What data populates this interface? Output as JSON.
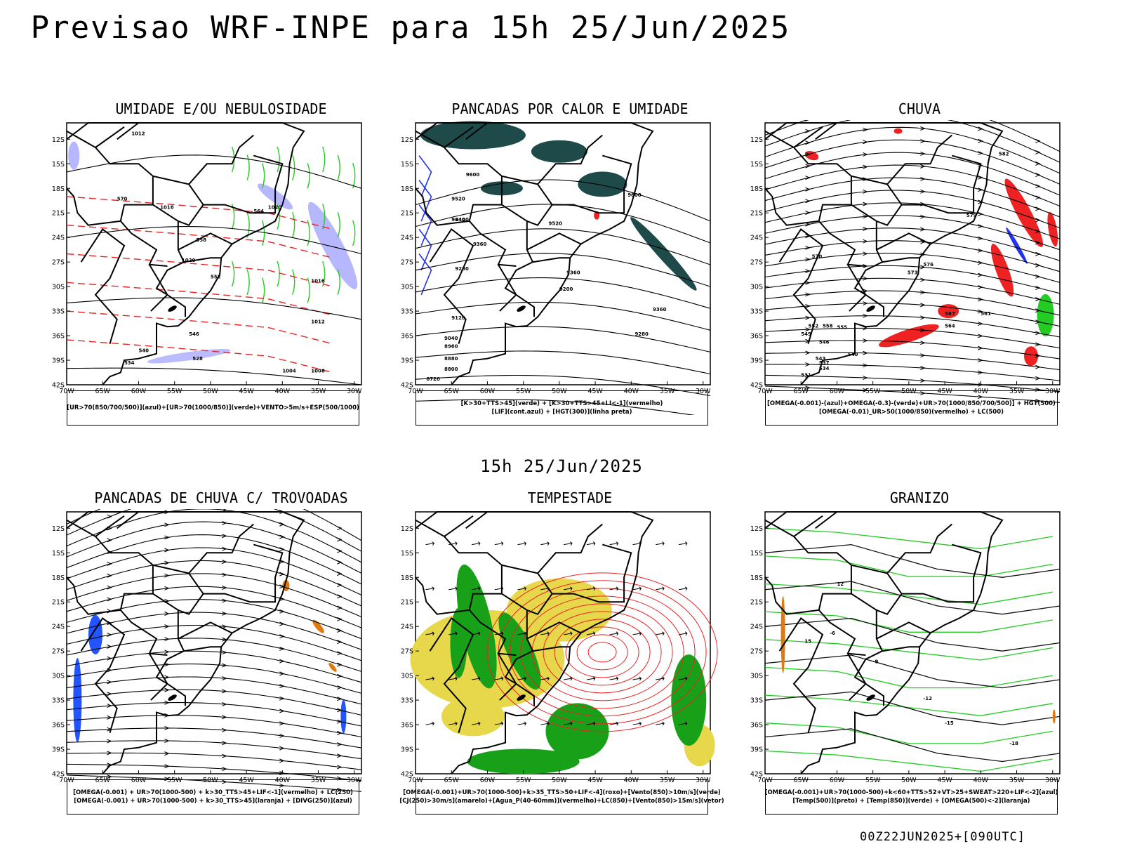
{
  "title": "Previsao WRF-INPE  para 15h 25/Jun/2025",
  "mid_time": "15h 25/Jun/2025",
  "run_stamp": "00Z22JUN2025+[090UTC]",
  "axes": {
    "lat_ticks": [
      "12S",
      "15S",
      "18S",
      "21S",
      "24S",
      "27S",
      "30S",
      "33S",
      "36S",
      "39S",
      "42S"
    ],
    "lon_ticks": [
      "70W",
      "65W",
      "60W",
      "55W",
      "50W",
      "45W",
      "40W",
      "35W",
      "30W"
    ]
  },
  "colors": {
    "blue": "#6666ff",
    "lightblue": "#aaaaff",
    "green": "#22cc22",
    "red": "#ee2222",
    "darkteal": "#1e4a4a",
    "yellow": "#e6d84a",
    "orange": "#e07a10",
    "black": "#000000"
  },
  "panels": [
    {
      "title": "UMIDADE E/OU NEBULOSIDADE",
      "legend": [
        "[UR>70(850/700/500)](azul)+[UR>70(1000/850)](verde)+VENTO>5m/s+ESP(500/1000)"
      ],
      "contour_labels": [
        "1012",
        "1016",
        "1020",
        "570",
        "564",
        "558",
        "552",
        "546",
        "540",
        "534",
        "528",
        "1008",
        "1004"
      ]
    },
    {
      "title": "PANCADAS POR CALOR E UMIDADE",
      "legend": [
        "[K>30+TTS>45](verde) + [K>30+TTS>45+LI<-1](vermelho)",
        "[LIF](cont.azul) + [HGT(300)](linha preta)"
      ],
      "contour_labels": [
        "9600",
        "9520",
        "9440",
        "9360",
        "9280",
        "9200",
        "9120",
        "9040",
        "8960",
        "8880",
        "8800",
        "8720"
      ]
    },
    {
      "title": "CHUVA",
      "legend": [
        "[OMEGA(-0.001)-(azul)+OMEGA(-0.3)-(verde)+UR>70(1000/850/700/500)] + HGT(500)",
        "[OMEGA(-0.01)_UR>50(1000/850)(vermelho) + LC(500)"
      ],
      "contour_labels": [
        "582",
        "579",
        "576",
        "573",
        "570",
        "567",
        "564",
        "561",
        "558",
        "555",
        "552",
        "549",
        "546",
        "543",
        "540",
        "537",
        "534",
        "531"
      ]
    },
    {
      "title": "PANCADAS DE CHUVA C/ TROVOADAS",
      "legend": [
        "[OMEGA(-0.001) + UR>70(1000-500) + k>30_TTS>45+LIF<-1](vermelho) + LC(250)",
        "[OMEGA(-0.001) + UR>70(1000-500) + k>30_TTS>45](laranja) + [DIVG(250)](azul)"
      ],
      "contour_labels": []
    },
    {
      "title": "TEMPESTADE",
      "legend": [
        "[OMEGA(-0.001)+UR>70(1000-500)+k>35_TTS>50+LIF<-4](roxo)+[Vento(850)>10m/s](verde)",
        "[CJ(250)>30m/s](amarelo)+[Agua_P(40-60mm)](vermelho)+LC(850)+[Vento(850)>15m/s](vetor)"
      ],
      "contour_labels": []
    },
    {
      "title": "GRANIZO",
      "legend": [
        "[OMEGA(-0.001)+UR>70(1000-500)+k<60+TTS>52+VT>25+SWEAT>220+LIF<-2](azul)",
        "[Temp(500)](preto) + [Temp(850)](verde) + [OMEGA(500)<-2](laranja)"
      ],
      "contour_labels": [
        "-6",
        "-9",
        "-12",
        "-15",
        "-18",
        "15",
        "12"
      ]
    }
  ]
}
